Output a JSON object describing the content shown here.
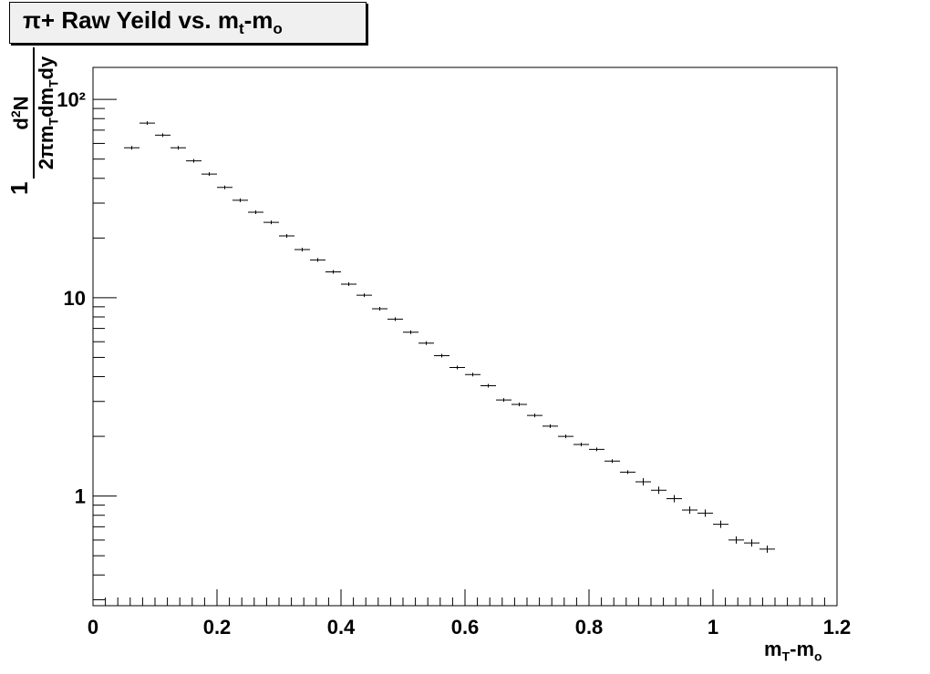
{
  "title": {
    "main": "π+ Raw Yeild vs. m",
    "sub1": "t",
    "mid": "-m",
    "sub2": "o"
  },
  "axis": {
    "x_label_main": "m",
    "x_label_sub1": "T",
    "x_label_mid": "-m",
    "x_label_sub2": "o",
    "y_label_one": "1",
    "y_label_num_pre": "d",
    "y_label_num_sup": "2",
    "y_label_num_post": "N",
    "y_label_den_pre": "2πm",
    "y_label_den_sub1": "T",
    "y_label_den_mid": "dm",
    "y_label_den_sub2": "T",
    "y_label_den_post": "dy"
  },
  "chart_data": {
    "type": "scatter",
    "x": [
      0.0625,
      0.0875,
      0.1125,
      0.1375,
      0.1625,
      0.1875,
      0.2125,
      0.2375,
      0.2625,
      0.2875,
      0.3125,
      0.3375,
      0.3625,
      0.3875,
      0.4125,
      0.4375,
      0.4625,
      0.4875,
      0.5125,
      0.5375,
      0.5625,
      0.5875,
      0.6125,
      0.6375,
      0.6625,
      0.6875,
      0.7125,
      0.7375,
      0.7625,
      0.7875,
      0.8125,
      0.8375,
      0.8625,
      0.8875,
      0.9125,
      0.9375,
      0.9625,
      0.9875,
      1.0125,
      1.0375,
      1.0625,
      1.0875
    ],
    "y": [
      57,
      76,
      66,
      57,
      49,
      42,
      36,
      31,
      27,
      24,
      20.5,
      17.5,
      15.5,
      13.5,
      11.7,
      10.3,
      8.8,
      7.8,
      6.7,
      5.9,
      5.1,
      4.45,
      4.1,
      3.6,
      3.05,
      2.9,
      2.55,
      2.25,
      2.0,
      1.82,
      1.72,
      1.5,
      1.32,
      1.18,
      1.07,
      0.97,
      0.85,
      0.82,
      0.72,
      0.6,
      0.58,
      0.54
    ],
    "xlim": [
      0,
      1.2
    ],
    "ylim": [
      0.28,
      145
    ],
    "y_scale": "log",
    "x_ticks": [
      "0",
      "0.2",
      "0.4",
      "0.6",
      "0.8",
      "1",
      "1.2"
    ],
    "y_ticks": [
      "1",
      "10",
      "10²"
    ],
    "grid": false,
    "legend": "none"
  }
}
